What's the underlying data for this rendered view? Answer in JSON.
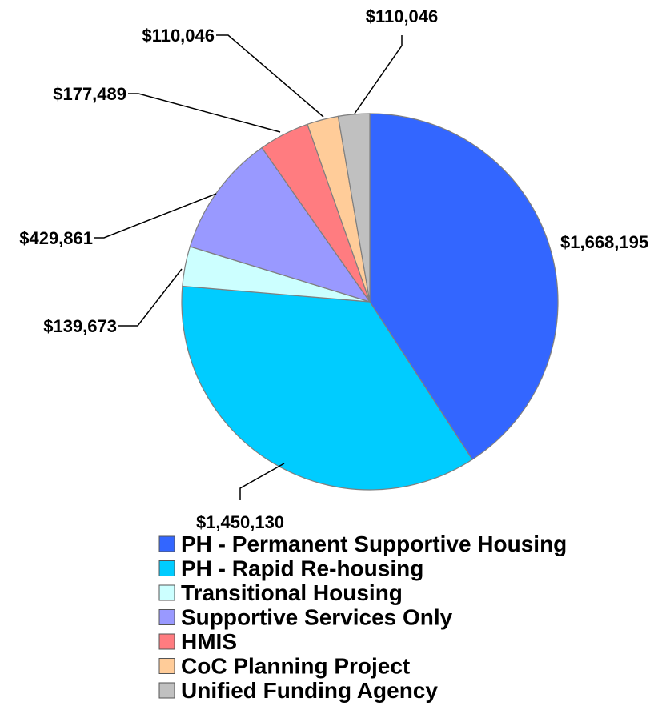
{
  "chart_data": {
    "type": "pie",
    "categories": [
      "PH - Permanent Supportive Housing",
      "PH - Rapid Re-housing",
      "Transitional Housing",
      "Supportive Services Only",
      "HMIS",
      "CoC Planning Project",
      "Unified Funding Agency"
    ],
    "values": [
      1668195,
      1450130,
      139673,
      429861,
      177489,
      110046,
      110046
    ],
    "data_labels": [
      "$1,668,195",
      "$1,450,130",
      "$139,673",
      "$429,861",
      "$177,489",
      "$110,046",
      "$110,046"
    ],
    "colors": [
      "#3366FF",
      "#00CCFF",
      "#CCFFFF",
      "#9999FF",
      "#FF7C80",
      "#FFCC99",
      "#C0C0C0"
    ],
    "start": "12 o'clock, clockwise",
    "legend_position": "bottom"
  }
}
